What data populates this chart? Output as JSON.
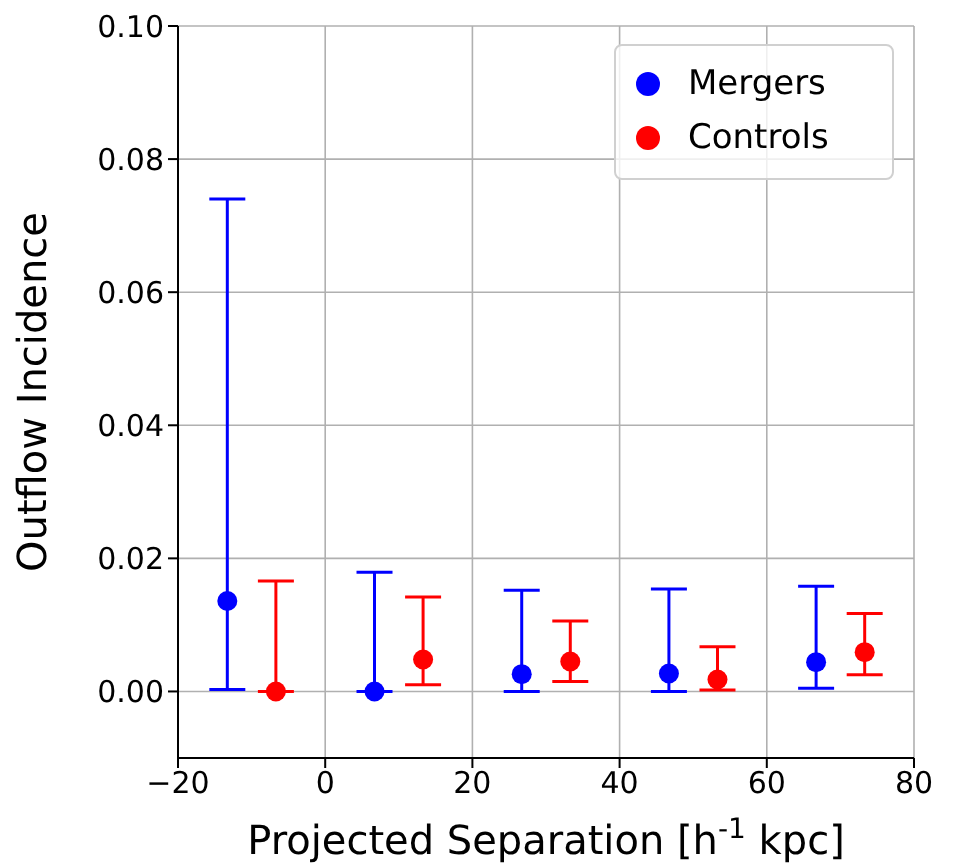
{
  "chart_data": {
    "type": "scatter",
    "xlabel": "Projected Separation [h$^{-1}$ kpc]",
    "ylabel": "Outflow Incidence",
    "xlim": [
      -20,
      80
    ],
    "xticks": [
      -20,
      0,
      20,
      40,
      60,
      80
    ],
    "ylim": [
      -0.01,
      0.1
    ],
    "yticks": [
      {
        "value": 0,
        "label": "0.00"
      },
      0.02,
      0.04,
      0.06,
      0.08,
      {
        "value": 0.1,
        "label": "0.10"
      }
    ],
    "grid": true,
    "legend": "top right",
    "marker": "circle",
    "series": [
      {
        "name": "Mergers",
        "color": "#0000ff",
        "x": [
          -13.3,
          6.7,
          26.7,
          46.7,
          66.7
        ],
        "values": [
          0.0136,
          0.0,
          0.0026,
          0.0027,
          0.0044
        ],
        "errors": [
          [
            0.0003,
            0.074
          ],
          [
            0.0,
            0.0179
          ],
          [
            0.0,
            0.0152
          ],
          [
            0.0,
            0.0154
          ],
          [
            0.0005,
            0.0158
          ]
        ]
      },
      {
        "name": "Controls",
        "color": "#ff0000",
        "x": [
          -6.7,
          13.3,
          33.3,
          53.3,
          73.3
        ],
        "values": [
          0.0,
          0.0048,
          0.0045,
          0.0018,
          0.0059
        ],
        "errors": [
          [
            0.0,
            0.0166
          ],
          [
            0.001,
            0.0142
          ],
          [
            0.0015,
            0.0106
          ],
          [
            0.0002,
            0.0067
          ],
          [
            0.0025,
            0.0117
          ]
        ]
      }
    ]
  }
}
